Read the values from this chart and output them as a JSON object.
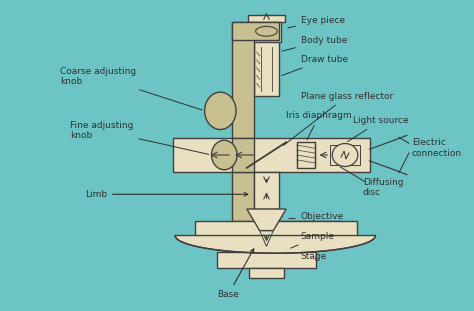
{
  "bg_color": "#6dc4c4",
  "line_color": "#404040",
  "label_color": "#303030",
  "labels": {
    "eye_piece": "Eye piece",
    "body_tube": "Body tube",
    "draw_tube": "Draw tube",
    "plane_glass": "Plane glass reflector",
    "iris": "Iris diaphragm",
    "light_source": "Light source",
    "electric": "Electric\nconnection",
    "diffusing": "Diffusing\ndisc",
    "coarse": "Coarse adjusting\nknob",
    "fine": "Fine adjusting\nknob",
    "limb": "Limb",
    "objective": "Objective",
    "sample": "Sample",
    "stage": "Stage",
    "base": "Base"
  },
  "font_size": 6.5
}
